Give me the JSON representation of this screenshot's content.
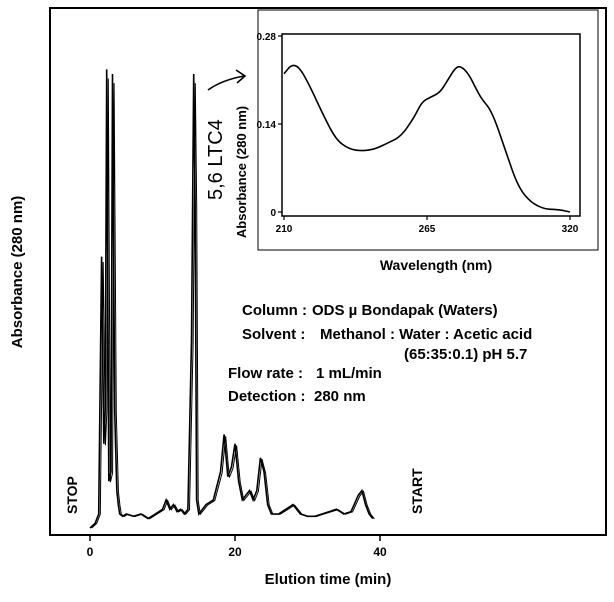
{
  "chart_data": [
    {
      "type": "line",
      "role": "chromatogram",
      "xlabel": "Elution time (min)",
      "ylabel": "Absorbance (280 nm)",
      "xlim": [
        0,
        40
      ],
      "x_ticks": [
        0,
        20,
        40
      ],
      "x_tick_labels": [
        "0",
        "20",
        "40"
      ],
      "grid": false,
      "legend": "none",
      "peak_label": "5,6 LTC4",
      "peak_label_x": 14.5,
      "stop_label": "STOP",
      "start_label": "START",
      "series": [
        {
          "x": [
            0,
            0.7,
            1.2,
            1.6,
            1.9,
            2.1,
            2.3,
            2.6,
            2.9,
            3.1,
            3.4,
            3.7,
            3.9,
            4.1,
            4.5,
            5,
            6,
            7,
            8,
            9,
            10,
            10.5,
            11,
            11.5,
            12,
            12.5,
            13,
            13.5,
            14,
            14.3,
            14.5,
            14.7,
            15,
            15.5,
            16,
            17,
            18,
            18.5,
            19,
            19.5,
            20,
            20.5,
            21,
            21.5,
            22,
            22.5,
            23,
            23.5,
            24,
            24.5,
            25,
            26,
            27,
            28,
            29,
            30,
            31,
            32,
            33,
            34,
            35,
            36,
            37,
            37.5,
            38,
            38.5,
            39
          ],
          "y": [
            0,
            0.01,
            0.03,
            0.58,
            0.18,
            0.25,
            0.98,
            0.1,
            0.12,
            0.97,
            0.25,
            0.08,
            0.05,
            0.03,
            0.025,
            0.03,
            0.025,
            0.03,
            0.02,
            0.03,
            0.04,
            0.06,
            0.04,
            0.05,
            0.035,
            0.04,
            0.03,
            0.04,
            0.4,
            0.97,
            0.7,
            0.06,
            0.03,
            0.04,
            0.05,
            0.06,
            0.12,
            0.2,
            0.11,
            0.13,
            0.18,
            0.1,
            0.06,
            0.07,
            0.08,
            0.06,
            0.08,
            0.15,
            0.12,
            0.05,
            0.03,
            0.03,
            0.04,
            0.05,
            0.03,
            0.025,
            0.025,
            0.03,
            0.035,
            0.04,
            0.03,
            0.035,
            0.07,
            0.08,
            0.05,
            0.03,
            0.02
          ]
        }
      ]
    },
    {
      "type": "line",
      "role": "inset UV spectrum",
      "xlabel": "Wavelength (nm)",
      "ylabel": "Absorbance (280 nm)",
      "xlim": [
        210,
        320
      ],
      "ylim": [
        0,
        0.28
      ],
      "x_ticks": [
        210,
        265,
        320
      ],
      "x_tick_labels": [
        "210",
        "265",
        "320"
      ],
      "y_ticks": [
        0,
        0.14,
        0.28
      ],
      "y_tick_labels": [
        "0",
        "0.14",
        "0.28"
      ],
      "grid": false,
      "legend": "none",
      "series": [
        {
          "x": [
            210,
            213,
            216,
            220,
            225,
            230,
            235,
            240,
            245,
            250,
            255,
            260,
            263,
            266,
            270,
            273,
            276,
            278,
            281,
            284,
            286,
            290,
            295,
            300,
            305,
            310,
            314,
            317,
            320
          ],
          "y": [
            0.22,
            0.235,
            0.23,
            0.2,
            0.155,
            0.115,
            0.1,
            0.097,
            0.1,
            0.11,
            0.12,
            0.15,
            0.175,
            0.182,
            0.19,
            0.21,
            0.23,
            0.232,
            0.22,
            0.195,
            0.18,
            0.16,
            0.1,
            0.04,
            0.015,
            0.005,
            0.004,
            0.003,
            0
          ]
        }
      ]
    }
  ],
  "conditions": {
    "column_label": "Column :",
    "column_value": "ODS µ Bondapak (Waters)",
    "solvent_label": "Solvent :",
    "solvent_value": "Methanol : Water : Acetic acid",
    "solvent_value_2": "(65:35:0.1) pH 5.7",
    "flow_label": "Flow rate :",
    "flow_value": "1 mL/min",
    "detection_label": "Detection :",
    "detection_value": "280 nm"
  }
}
